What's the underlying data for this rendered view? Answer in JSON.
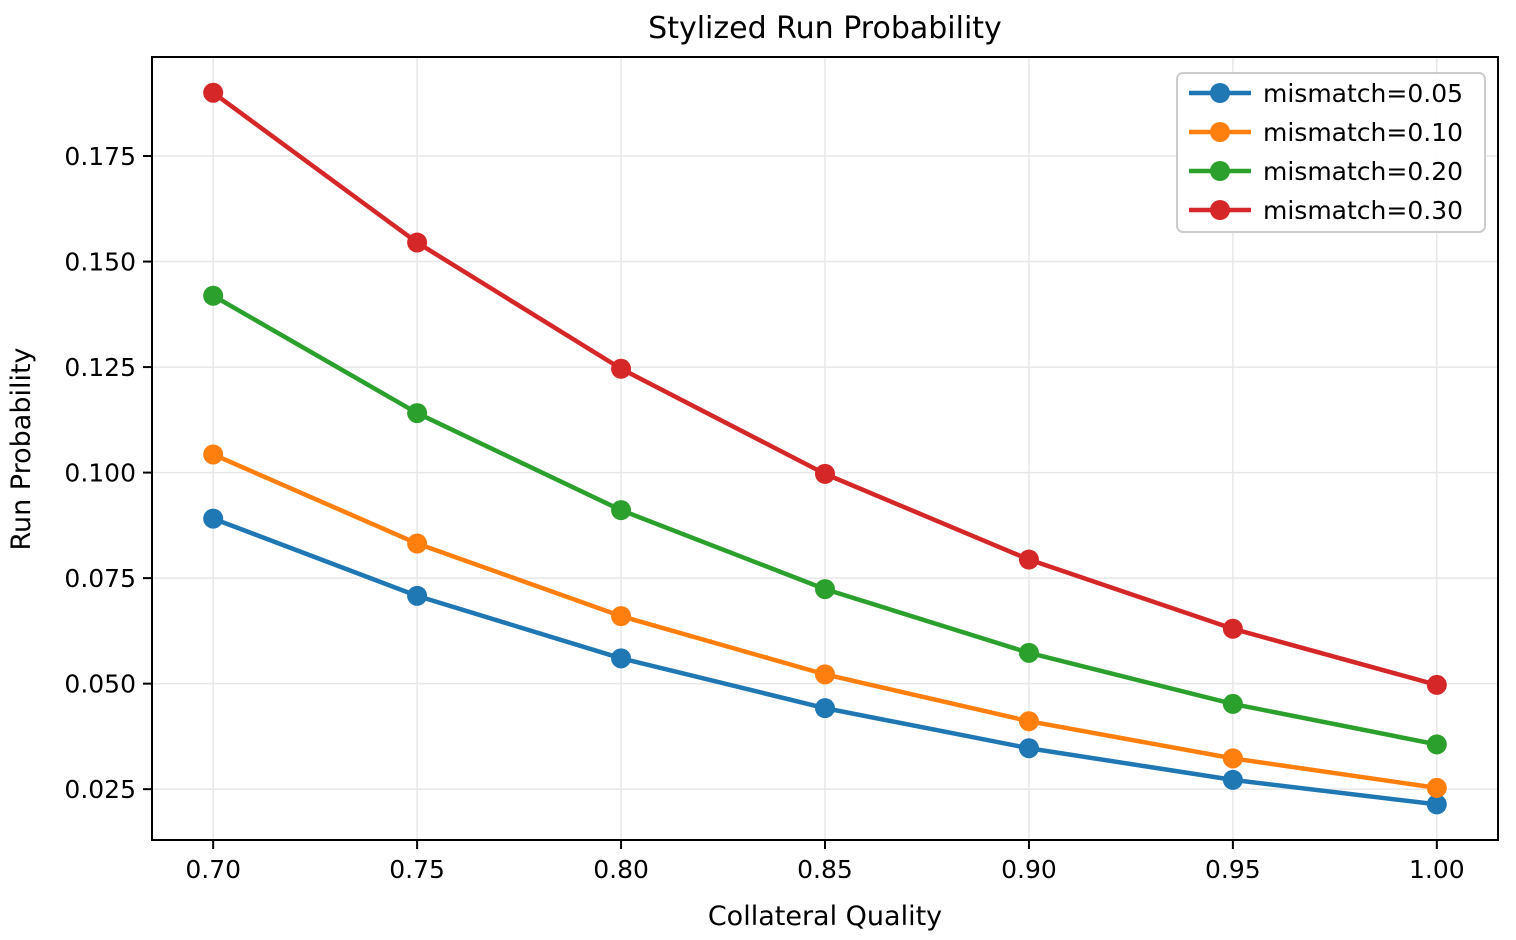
{
  "chart_data": {
    "type": "line",
    "title": "Stylized Run Probability",
    "xlabel": "Collateral Quality",
    "ylabel": "Run Probability",
    "grid": true,
    "legend_position": "upper right",
    "background_color": "#ffffff",
    "grid_color": "#e7e7e7",
    "spine_color": "#000000",
    "legend_border_color": "#cccccc",
    "marker": "circle",
    "xlim": [
      0.685,
      1.015
    ],
    "ylim": [
      0.01296,
      0.19846
    ],
    "x": [
      0.7,
      0.75,
      0.8,
      0.85,
      0.9,
      0.95,
      1.0
    ],
    "x_tick_labels": [
      "0.70",
      "0.75",
      "0.80",
      "0.85",
      "0.90",
      "0.95",
      "1.00"
    ],
    "y_ticks": [
      0.025,
      0.05,
      0.075,
      0.1,
      0.125,
      0.15,
      0.175
    ],
    "y_tick_labels": [
      "0.025",
      "0.050",
      "0.075",
      "0.100",
      "0.125",
      "0.150",
      "0.175"
    ],
    "series": [
      {
        "name": "mismatch=0.05",
        "color": "#1f77b4",
        "values": [
          0.0891,
          0.0708,
          0.056,
          0.0442,
          0.0347,
          0.0272,
          0.0214
        ]
      },
      {
        "name": "mismatch=0.10",
        "color": "#ff7f0e",
        "values": [
          0.1043,
          0.0832,
          0.066,
          0.0522,
          0.0411,
          0.0323,
          0.0253
        ]
      },
      {
        "name": "mismatch=0.20",
        "color": "#2ca02c",
        "values": [
          0.1419,
          0.1141,
          0.0911,
          0.0724,
          0.0573,
          0.0452,
          0.0356
        ]
      },
      {
        "name": "mismatch=0.30",
        "color": "#d62728",
        "values": [
          0.19,
          0.1545,
          0.1246,
          0.0997,
          0.0794,
          0.063,
          0.0497
        ]
      }
    ]
  }
}
